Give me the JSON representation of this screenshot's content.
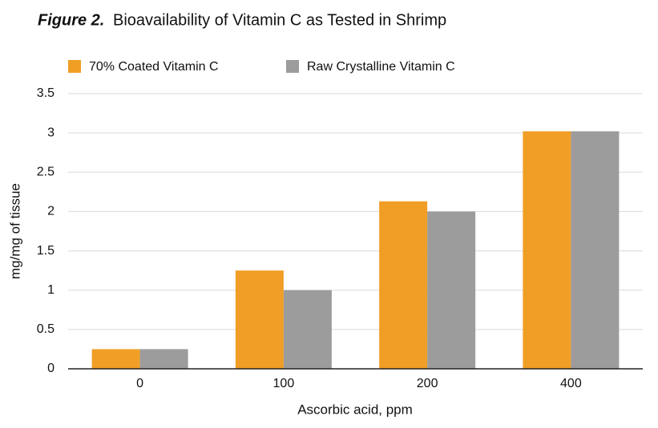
{
  "chart_data": {
    "type": "bar",
    "title_label": "Figure 2.",
    "title": "Bioavailability of Vitamin C as Tested in Shrimp",
    "x_label": "Ascorbic acid, ppm",
    "y_label": "mg/mg of tissue",
    "categories": [
      "0",
      "100",
      "200",
      "400"
    ],
    "series": [
      {
        "name": "70% Coated Vitamin C",
        "color": "#f09e25",
        "values": [
          0.25,
          1.25,
          2.13,
          3.02
        ]
      },
      {
        "name": "Raw Crystalline Vitamin C",
        "color": "#9c9c9c",
        "values": [
          0.25,
          1.0,
          2.0,
          3.02
        ]
      }
    ],
    "ylim": [
      0,
      3.5
    ],
    "yticks": [
      0,
      0.5,
      1,
      1.5,
      2,
      2.5,
      3,
      3.5
    ],
    "grid": true,
    "legend": "top"
  }
}
